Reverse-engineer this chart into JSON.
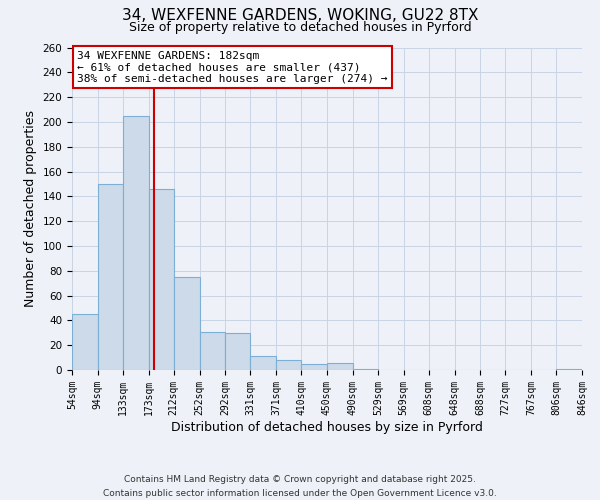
{
  "title_line1": "34, WEXFENNE GARDENS, WOKING, GU22 8TX",
  "title_line2": "Size of property relative to detached houses in Pyrford",
  "xlabel": "Distribution of detached houses by size in Pyrford",
  "ylabel": "Number of detached properties",
  "bin_edges": [
    54,
    94,
    133,
    173,
    212,
    252,
    292,
    331,
    371,
    410,
    450,
    490,
    529,
    569,
    608,
    648,
    688,
    727,
    767,
    806,
    846
  ],
  "bin_heights": [
    45,
    150,
    205,
    146,
    75,
    31,
    30,
    11,
    8,
    5,
    6,
    1,
    0,
    0,
    0,
    0,
    0,
    0,
    0,
    1
  ],
  "bar_color": "#ccdaea",
  "bar_edgecolor": "#7bafd4",
  "grid_color": "#c8d4e4",
  "vline_x": 182,
  "vline_color": "#cc0000",
  "annotation_line1": "34 WEXFENNE GARDENS: 182sqm",
  "annotation_line2": "← 61% of detached houses are smaller (437)",
  "annotation_line3": "38% of semi-detached houses are larger (274) →",
  "annotation_box_edgecolor": "#cc0000",
  "annotation_box_facecolor": "#ffffff",
  "ylim": [
    0,
    260
  ],
  "yticks": [
    0,
    20,
    40,
    60,
    80,
    100,
    120,
    140,
    160,
    180,
    200,
    220,
    240,
    260
  ],
  "footer_line1": "Contains HM Land Registry data © Crown copyright and database right 2025.",
  "footer_line2": "Contains public sector information licensed under the Open Government Licence v3.0.",
  "bg_color": "#eef2f8",
  "title_fontsize": 11,
  "subtitle_fontsize": 9,
  "tick_fontsize": 7,
  "label_fontsize": 9,
  "annotation_fontsize": 8,
  "footer_fontsize": 6.5
}
